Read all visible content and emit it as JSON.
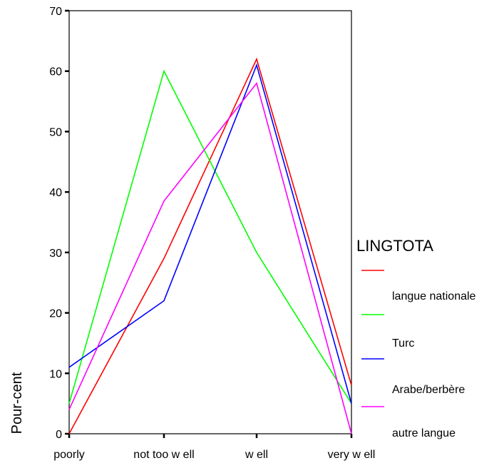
{
  "chart_data": {
    "type": "line",
    "categories": [
      "poorly",
      "not too w ell",
      "w ell",
      "very w ell"
    ],
    "ylabel": "Pour-cent",
    "xlabel": "",
    "ylim": [
      0,
      70
    ],
    "yticks": [
      0,
      10,
      20,
      30,
      40,
      50,
      60,
      70
    ],
    "grid": false,
    "legend": {
      "title": "LINGTOTA",
      "position": "right"
    },
    "series": [
      {
        "name": "langue nationale",
        "color": "#ff0000",
        "values": [
          0,
          29,
          62,
          8
        ]
      },
      {
        "name": "Turc",
        "color": "#00ff00",
        "values": [
          5,
          60,
          30,
          5
        ]
      },
      {
        "name": "Arabe/berbère",
        "color": "#0000ff",
        "values": [
          11,
          22,
          61,
          5
        ]
      },
      {
        "name": "autre langue",
        "color": "#ff00ff",
        "values": [
          4,
          38.5,
          58,
          0
        ]
      }
    ]
  }
}
